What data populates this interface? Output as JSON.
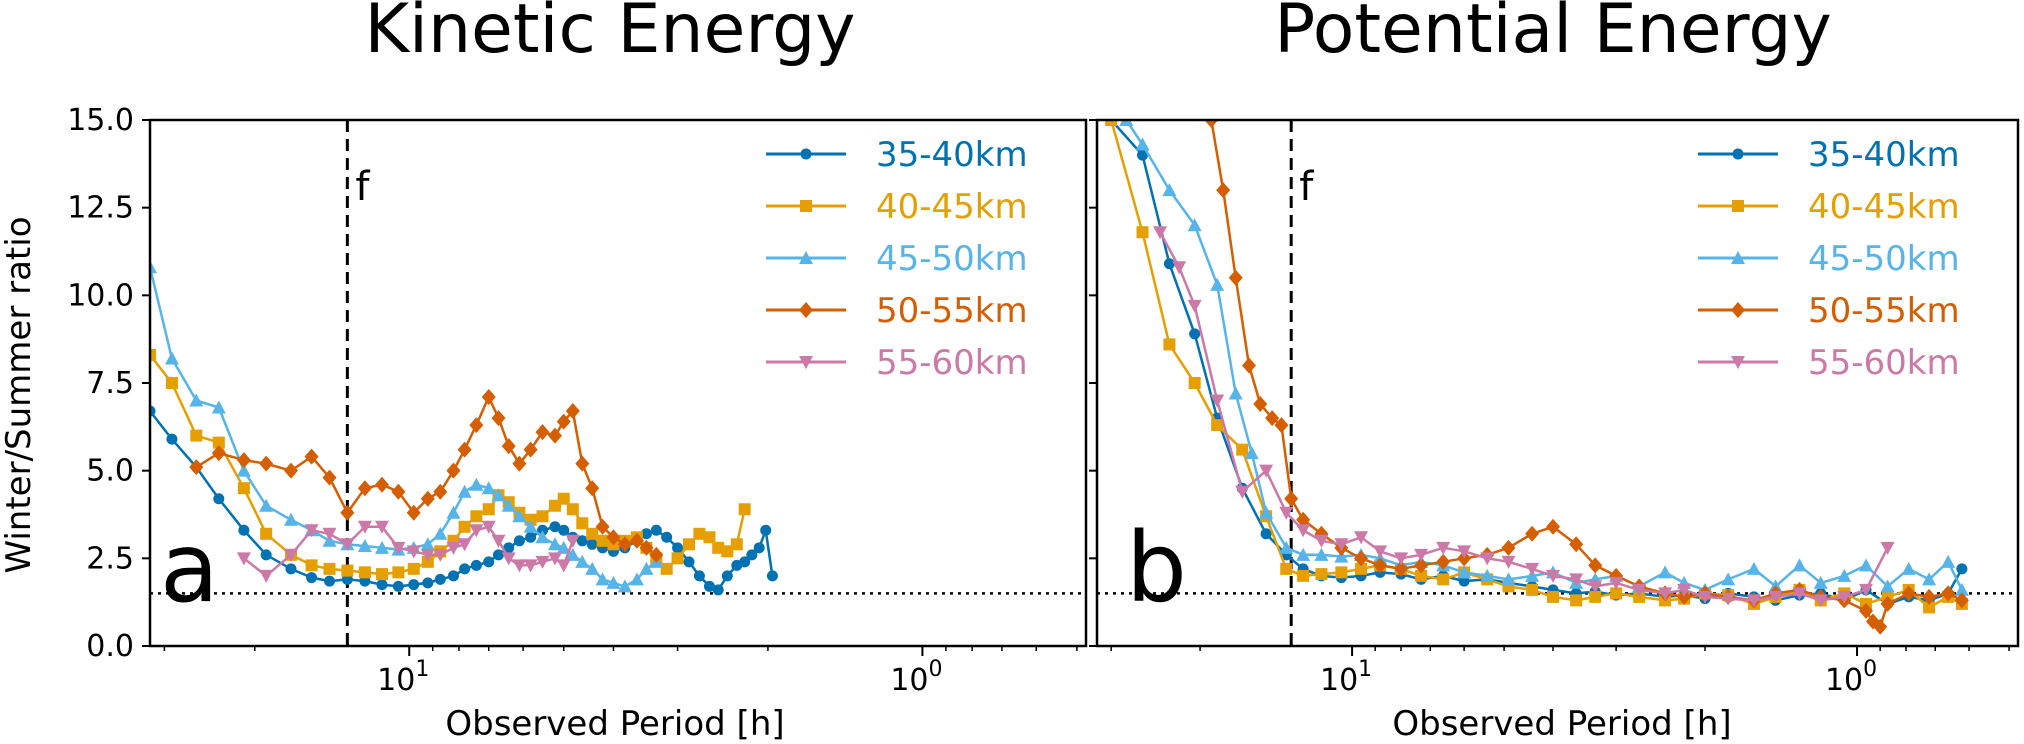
{
  "chart_data": [
    {
      "type": "line",
      "title": "Kinetic Energy",
      "panel_label": "a",
      "xlabel": "Observed Period [h]",
      "ylabel": "Winter/Summer ratio",
      "x_scale": "log, reversed (period decreases to the right)",
      "xlim": [
        32,
        0.48
      ],
      "ylim": [
        0,
        15
      ],
      "yticks": [
        "0.0",
        "2.5",
        "5.0",
        "7.5",
        "10.0",
        "12.5",
        "15.0"
      ],
      "xticks": [
        {
          "value": 10,
          "base": "10",
          "exp": "1"
        },
        {
          "value": 1,
          "base": "10",
          "exp": "0"
        }
      ],
      "reference_lines": {
        "inertial_period_label": "f",
        "inertial_period_h": 13.2,
        "horizontal_dotted_y": 1.5
      },
      "legend_position": "top-right",
      "series": [
        {
          "name": "35-40km",
          "color": "#0072B2",
          "marker": "circle",
          "x": [
            32,
            29,
            26,
            23.5,
            21,
            19,
            17,
            15.5,
            14.3,
            13.2,
            12.2,
            11.3,
            10.5,
            9.8,
            9.2,
            8.7,
            8.2,
            7.8,
            7.4,
            7.0,
            6.7,
            6.4,
            6.1,
            5.8,
            5.5,
            5.2,
            5.0,
            4.8,
            4.6,
            4.4,
            4.2,
            4.0,
            3.8,
            3.6,
            3.45,
            3.3,
            3.15,
            3.0,
            2.85,
            2.72,
            2.6,
            2.5,
            2.4,
            2.3,
            2.22,
            2.15,
            2.08,
            2.02,
            1.96
          ],
          "y": [
            6.7,
            5.9,
            5.1,
            4.2,
            3.3,
            2.6,
            2.2,
            1.95,
            1.85,
            1.9,
            1.85,
            1.75,
            1.7,
            1.75,
            1.8,
            1.9,
            2.0,
            2.2,
            2.3,
            2.4,
            2.6,
            2.8,
            3.0,
            3.1,
            3.3,
            3.4,
            3.3,
            3.1,
            3.0,
            2.9,
            2.8,
            2.7,
            2.8,
            3.0,
            3.2,
            3.3,
            3.1,
            2.8,
            2.4,
            2.0,
            1.7,
            1.6,
            2.0,
            2.3,
            2.4,
            2.6,
            2.8,
            3.3,
            2.0
          ]
        },
        {
          "name": "40-45km",
          "color": "#E69F00",
          "marker": "square",
          "x": [
            32,
            29,
            26,
            23.5,
            21,
            19,
            17,
            15.5,
            14.3,
            13.2,
            12.2,
            11.3,
            10.5,
            9.8,
            9.2,
            8.7,
            8.2,
            7.8,
            7.4,
            7.0,
            6.7,
            6.4,
            6.1,
            5.8,
            5.5,
            5.2,
            5.0,
            4.8,
            4.6,
            4.4,
            4.2,
            4.0,
            3.8,
            3.6,
            3.45,
            3.3,
            3.15,
            3.0,
            2.85,
            2.72,
            2.6,
            2.5,
            2.4,
            2.3,
            2.22
          ],
          "y": [
            8.3,
            7.5,
            6.0,
            5.8,
            4.5,
            3.2,
            2.6,
            2.3,
            2.2,
            2.15,
            2.1,
            2.05,
            2.1,
            2.2,
            2.4,
            2.7,
            3.0,
            3.4,
            3.7,
            3.9,
            4.3,
            4.1,
            3.8,
            3.6,
            3.7,
            4.0,
            4.2,
            3.9,
            3.5,
            3.2,
            3.0,
            2.9,
            3.0,
            3.1,
            2.8,
            2.5,
            2.2,
            2.5,
            2.9,
            3.2,
            3.1,
            2.8,
            2.7,
            2.9,
            3.9
          ]
        },
        {
          "name": "45-50km",
          "color": "#56B4E9",
          "marker": "triangle-up",
          "x": [
            32,
            29,
            26,
            23.5,
            21,
            19,
            17,
            15.5,
            14.3,
            13.2,
            12.2,
            11.3,
            10.5,
            9.8,
            9.2,
            8.7,
            8.2,
            7.8,
            7.4,
            7.0,
            6.7,
            6.4,
            6.1,
            5.8,
            5.5,
            5.2,
            5.0,
            4.8,
            4.6,
            4.4,
            4.2,
            4.0,
            3.8,
            3.6,
            3.45,
            3.3
          ],
          "y": [
            10.8,
            8.2,
            7.0,
            6.8,
            5.0,
            4.0,
            3.6,
            3.3,
            3.0,
            2.9,
            2.85,
            2.8,
            2.75,
            2.8,
            2.9,
            3.2,
            3.8,
            4.4,
            4.6,
            4.5,
            4.3,
            4.0,
            3.7,
            3.4,
            3.1,
            2.9,
            2.8,
            2.6,
            2.4,
            2.2,
            1.9,
            1.8,
            1.7,
            1.9,
            2.2,
            2.4
          ]
        },
        {
          "name": "50-55km",
          "color": "#D55E00",
          "marker": "diamond",
          "x": [
            26,
            23.5,
            21,
            19,
            17,
            15.5,
            14.3,
            13.2,
            12.2,
            11.3,
            10.5,
            9.8,
            9.2,
            8.7,
            8.2,
            7.8,
            7.4,
            7.0,
            6.7,
            6.4,
            6.1,
            5.8,
            5.5,
            5.2,
            5.0,
            4.8,
            4.6,
            4.4,
            4.2,
            4.0,
            3.8,
            3.6,
            3.45,
            3.3
          ],
          "y": [
            5.1,
            5.5,
            5.3,
            5.2,
            5.0,
            5.4,
            4.8,
            3.8,
            4.5,
            4.6,
            4.4,
            3.8,
            4.2,
            4.4,
            5.0,
            5.6,
            6.3,
            7.1,
            6.5,
            5.7,
            5.2,
            5.6,
            6.1,
            6.0,
            6.4,
            6.7,
            5.2,
            4.5,
            3.4,
            3.1,
            2.9,
            3.0,
            2.8,
            2.6
          ]
        },
        {
          "name": "55-60km",
          "color": "#CC79A7",
          "marker": "triangle-down",
          "x": [
            21,
            19,
            17,
            15.5,
            14.3,
            13.2,
            12.2,
            11.3,
            10.5,
            9.8,
            9.2,
            8.7,
            8.2,
            7.8,
            7.4,
            7.0,
            6.7,
            6.4,
            6.1,
            5.8,
            5.5,
            5.2,
            5.0,
            4.8
          ],
          "y": [
            2.5,
            2.0,
            2.6,
            3.3,
            3.2,
            2.9,
            3.4,
            3.4,
            2.8,
            2.7,
            2.6,
            2.6,
            2.8,
            2.9,
            3.3,
            3.4,
            3.0,
            2.5,
            2.3,
            2.3,
            2.4,
            2.5,
            2.3,
            3.0
          ]
        }
      ]
    },
    {
      "type": "line",
      "title": "Potential Energy",
      "panel_label": "b",
      "xlabel": "Observed Period [h]",
      "ylabel": "",
      "x_scale": "log, reversed (period decreases to the right)",
      "xlim": [
        32,
        0.48
      ],
      "ylim": [
        0,
        15
      ],
      "yticks": [],
      "xticks": [
        {
          "value": 10,
          "base": "10",
          "exp": "1"
        },
        {
          "value": 1,
          "base": "10",
          "exp": "0"
        }
      ],
      "reference_lines": {
        "inertial_period_label": "f",
        "inertial_period_h": 13.2,
        "horizontal_dotted_y": 1.5
      },
      "legend_position": "top-right",
      "series": [
        {
          "name": "35-40km",
          "color": "#0072B2",
          "marker": "circle",
          "x": [
            30,
            26,
            23,
            20.5,
            18.5,
            16.5,
            14.8,
            13.5,
            12.5,
            11.5,
            10.5,
            9.6,
            8.8,
            8.0,
            7.3,
            6.6,
            6.0,
            5.4,
            4.9,
            4.4,
            4.0,
            3.6,
            3.3,
            3.0,
            2.7,
            2.4,
            2.2,
            2.0,
            1.8,
            1.6,
            1.45,
            1.3,
            1.18,
            1.06,
            0.96,
            0.87,
            0.79,
            0.72,
            0.66,
            0.62
          ],
          "y": [
            15,
            14.0,
            10.9,
            8.9,
            6.5,
            4.5,
            3.2,
            2.6,
            2.2,
            2.0,
            1.95,
            2.0,
            2.1,
            2.05,
            1.9,
            2.0,
            1.85,
            1.9,
            1.8,
            1.7,
            1.6,
            1.5,
            1.55,
            1.45,
            1.5,
            1.4,
            1.45,
            1.35,
            1.5,
            1.4,
            1.3,
            1.45,
            1.5,
            1.3,
            1.6,
            1.2,
            1.4,
            1.3,
            1.5,
            2.2
          ]
        },
        {
          "name": "40-45km",
          "color": "#E69F00",
          "marker": "square",
          "x": [
            30,
            26,
            23,
            20.5,
            18.5,
            16.5,
            14.8,
            13.5,
            12.5,
            11.5,
            10.5,
            9.6,
            8.8,
            8.0,
            7.3,
            6.6,
            6.0,
            5.4,
            4.9,
            4.4,
            4.0,
            3.6,
            3.3,
            3.0,
            2.7,
            2.4,
            2.2,
            2.0,
            1.8,
            1.6,
            1.45,
            1.3,
            1.18,
            1.06,
            0.96,
            0.87,
            0.79,
            0.72,
            0.66,
            0.62
          ],
          "y": [
            15,
            11.8,
            8.6,
            7.5,
            6.3,
            5.6,
            3.7,
            2.2,
            2.0,
            2.05,
            2.1,
            2.2,
            2.3,
            2.2,
            2.0,
            1.9,
            2.1,
            1.9,
            1.7,
            1.6,
            1.4,
            1.3,
            1.4,
            1.5,
            1.4,
            1.3,
            1.35,
            1.5,
            1.45,
            1.2,
            1.4,
            1.6,
            1.3,
            1.5,
            1.2,
            1.4,
            1.6,
            1.1,
            1.4,
            1.2
          ]
        },
        {
          "name": "45-50km",
          "color": "#56B4E9",
          "marker": "triangle-up",
          "x": [
            28,
            26,
            23,
            20.5,
            18.5,
            17,
            15.8,
            14.8,
            13.5,
            12.5,
            11.5,
            10.5,
            9.6,
            8.8,
            8.0,
            7.3,
            6.6,
            6.0,
            5.4,
            4.9,
            4.4,
            4.0,
            3.6,
            3.3,
            3.0,
            2.7,
            2.4,
            2.2,
            2.0,
            1.8,
            1.6,
            1.45,
            1.3,
            1.18,
            1.06,
            0.96,
            0.87,
            0.79,
            0.72,
            0.66,
            0.62
          ],
          "y": [
            15,
            14.3,
            13.0,
            12.0,
            10.3,
            7.2,
            5.5,
            3.8,
            2.8,
            2.6,
            2.6,
            2.55,
            2.6,
            2.5,
            2.3,
            2.4,
            2.3,
            2.1,
            2.0,
            1.9,
            2.0,
            2.1,
            1.8,
            1.9,
            2.0,
            1.7,
            2.1,
            1.8,
            1.6,
            1.9,
            2.2,
            1.7,
            2.3,
            1.8,
            2.0,
            2.3,
            1.7,
            2.2,
            1.9,
            2.4,
            1.6
          ]
        },
        {
          "name": "50-55km",
          "color": "#D55E00",
          "marker": "diamond",
          "x": [
            19,
            18,
            17,
            16,
            15.2,
            14.4,
            13.8,
            13.2,
            12.5,
            11.5,
            10.5,
            9.6,
            8.8,
            8.0,
            7.3,
            6.6,
            6.0,
            5.4,
            4.9,
            4.4,
            4.0,
            3.6,
            3.3,
            3.0,
            2.7,
            2.4,
            2.2,
            2.0,
            1.8,
            1.6,
            1.45,
            1.3,
            1.18,
            1.06,
            0.96,
            0.93,
            0.9,
            0.87,
            0.79,
            0.72,
            0.66,
            0.62
          ],
          "y": [
            15,
            13.0,
            10.5,
            8.0,
            6.9,
            6.5,
            6.3,
            4.2,
            3.6,
            3.2,
            2.8,
            2.5,
            2.3,
            2.2,
            2.3,
            2.4,
            2.5,
            2.6,
            2.8,
            3.2,
            3.4,
            2.9,
            2.3,
            2.0,
            1.7,
            1.5,
            1.4,
            1.5,
            1.4,
            1.3,
            1.5,
            1.6,
            1.4,
            1.3,
            1.0,
            0.7,
            0.55,
            1.2,
            1.5,
            1.4,
            1.5,
            1.3
          ]
        },
        {
          "name": "55-60km",
          "color": "#CC79A7",
          "marker": "triangle-down",
          "x": [
            24,
            22,
            20.5,
            18.5,
            16.5,
            14.8,
            13.5,
            12.5,
            11.5,
            10.5,
            9.6,
            8.8,
            8.0,
            7.3,
            6.6,
            6.0,
            5.4,
            4.9,
            4.4,
            4.0,
            3.6,
            3.3,
            3.0,
            2.7,
            2.4,
            2.2,
            2.0,
            1.8,
            1.6,
            1.45,
            1.3,
            1.18,
            1.06,
            0.96,
            0.87
          ],
          "y": [
            11.8,
            10.8,
            9.7,
            7.0,
            4.4,
            5.0,
            3.8,
            3.3,
            3.0,
            2.9,
            3.1,
            2.7,
            2.5,
            2.6,
            2.8,
            2.7,
            2.5,
            2.4,
            2.2,
            2.0,
            1.9,
            1.7,
            1.8,
            1.6,
            1.5,
            1.6,
            1.4,
            1.35,
            1.3,
            1.4,
            1.5,
            1.3,
            1.4,
            1.6,
            2.8
          ]
        }
      ]
    }
  ]
}
